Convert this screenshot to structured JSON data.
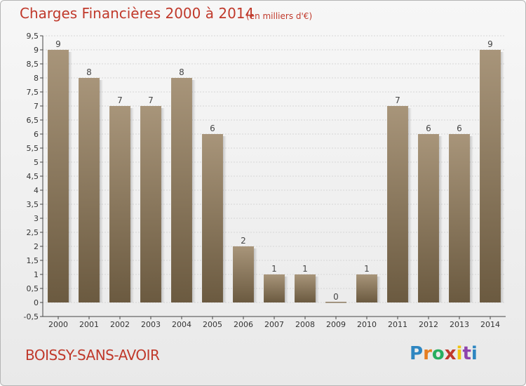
{
  "header": {
    "title": "Charges Financières 2000 à 2014",
    "unit": "(en milliers d'€)"
  },
  "footer": {
    "place": "BOISSY-SANS-AVOIR",
    "logo": "Proxiti"
  },
  "colors": {
    "title": "#c0392b",
    "bar_top": "#a8957a",
    "bar_bottom": "#6b5a40",
    "grid": "#d6d6d6",
    "axis": "#444444"
  },
  "chart_data": {
    "type": "bar",
    "categories": [
      "2000",
      "2001",
      "2002",
      "2003",
      "2004",
      "2005",
      "2006",
      "2007",
      "2008",
      "2009",
      "2010",
      "2011",
      "2012",
      "2013",
      "2014"
    ],
    "values": [
      9,
      8,
      7,
      7,
      8,
      6,
      2,
      1,
      1,
      0,
      1,
      7,
      6,
      6,
      9
    ],
    "data_labels": [
      "9",
      "8",
      "7",
      "7",
      "8",
      "6",
      "2",
      "1",
      "1",
      "0",
      "1",
      "7",
      "6",
      "6",
      "9"
    ],
    "yticks": [
      "-0,5",
      "0",
      "0,5",
      "1",
      "1,5",
      "2",
      "2,5",
      "3",
      "3,5",
      "4",
      "4,5",
      "5",
      "5,5",
      "6",
      "6,5",
      "7",
      "7,5",
      "8",
      "8,5",
      "9",
      "9,5"
    ],
    "ylim": [
      -0.5,
      9.5
    ],
    "grid": true,
    "title": "Charges Financières 2000 à 2014",
    "ylabel": "(en milliers d'€)"
  }
}
